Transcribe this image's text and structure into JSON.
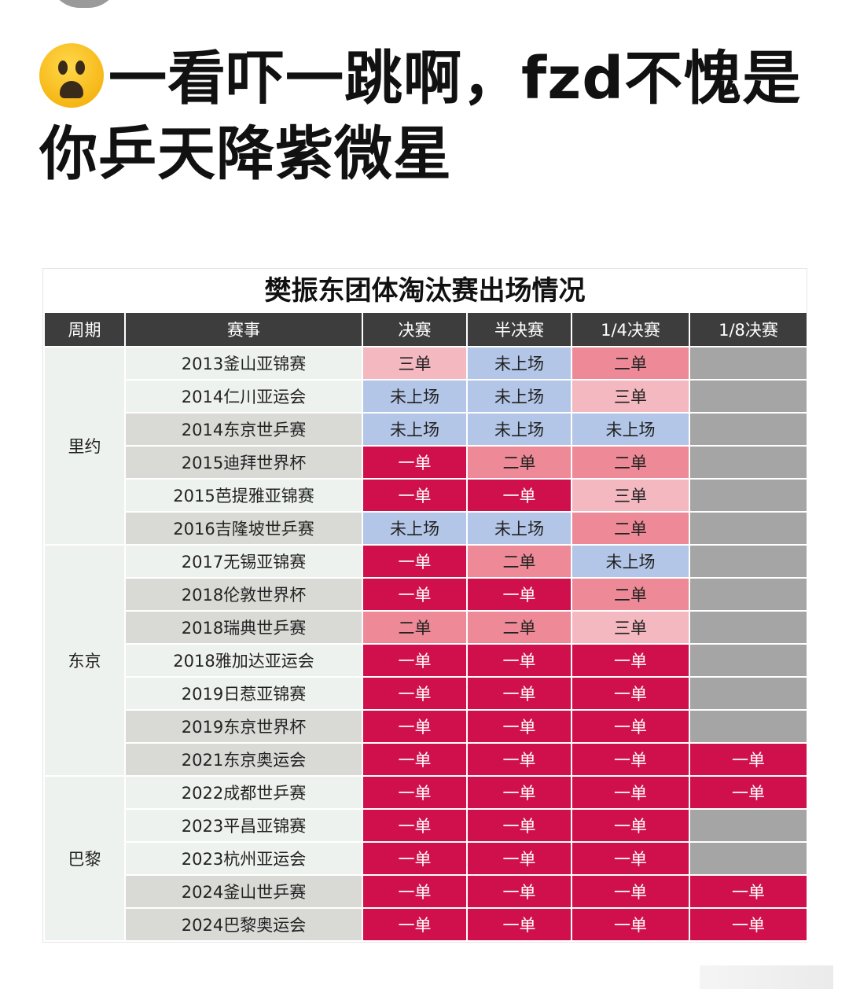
{
  "headline": {
    "emoji": "anguished-face",
    "text": "一看吓一跳啊，fzd不愧是你乒天降紫微星"
  },
  "table": {
    "title": "樊振东团体淘汰赛出场情况",
    "headers": [
      "周期",
      "赛事",
      "决赛",
      "半决赛",
      "1/4决赛",
      "1/8决赛"
    ],
    "periods": [
      {
        "label": "里约",
        "rows": 6
      },
      {
        "label": "东京",
        "rows": 7
      },
      {
        "label": "巴黎",
        "rows": 5
      }
    ],
    "legend_colors": {
      "一单": "#d0104c",
      "二单": "#ee8a97",
      "三单": "#f4b8c1",
      "未上场": "#b4c6e7",
      "无": "#a5a5a5"
    },
    "rows": [
      {
        "event": "2013釜山亚锦赛",
        "shade": "l",
        "cells": [
          "三单",
          "未上场",
          "二单",
          ""
        ]
      },
      {
        "event": "2014仁川亚运会",
        "shade": "l",
        "cells": [
          "未上场",
          "未上场",
          "三单",
          ""
        ]
      },
      {
        "event": "2014东京世乒赛",
        "shade": "d",
        "cells": [
          "未上场",
          "未上场",
          "未上场",
          ""
        ]
      },
      {
        "event": "2015迪拜世界杯",
        "shade": "d",
        "cells": [
          "一单",
          "二单",
          "二单",
          ""
        ]
      },
      {
        "event": "2015芭提雅亚锦赛",
        "shade": "l",
        "cells": [
          "一单",
          "一单",
          "三单",
          ""
        ]
      },
      {
        "event": "2016吉隆坡世乒赛",
        "shade": "d",
        "cells": [
          "未上场",
          "未上场",
          "二单",
          ""
        ]
      },
      {
        "event": "2017无锡亚锦赛",
        "shade": "l",
        "cells": [
          "一单",
          "二单",
          "未上场",
          ""
        ]
      },
      {
        "event": "2018伦敦世界杯",
        "shade": "d",
        "cells": [
          "一单",
          "一单",
          "二单",
          ""
        ]
      },
      {
        "event": "2018瑞典世乒赛",
        "shade": "d",
        "cells": [
          "二单",
          "二单",
          "三单",
          ""
        ]
      },
      {
        "event": "2018雅加达亚运会",
        "shade": "l",
        "cells": [
          "一单",
          "一单",
          "一单",
          ""
        ]
      },
      {
        "event": "2019日惹亚锦赛",
        "shade": "l",
        "cells": [
          "一单",
          "一单",
          "一单",
          ""
        ]
      },
      {
        "event": "2019东京世界杯",
        "shade": "d",
        "cells": [
          "一单",
          "一单",
          "一单",
          ""
        ]
      },
      {
        "event": "2021东京奥运会",
        "shade": "d",
        "cells": [
          "一单",
          "一单",
          "一单",
          "一单"
        ]
      },
      {
        "event": "2022成都世乒赛",
        "shade": "l",
        "cells": [
          "一单",
          "一单",
          "一单",
          "一单"
        ]
      },
      {
        "event": "2023平昌亚锦赛",
        "shade": "l",
        "cells": [
          "一单",
          "一单",
          "一单",
          ""
        ]
      },
      {
        "event": "2023杭州亚运会",
        "shade": "l",
        "cells": [
          "一单",
          "一单",
          "一单",
          ""
        ]
      },
      {
        "event": "2024釜山世乒赛",
        "shade": "d",
        "cells": [
          "一单",
          "一单",
          "一单",
          "一单"
        ]
      },
      {
        "event": "2024巴黎奥运会",
        "shade": "d",
        "cells": [
          "一单",
          "一单",
          "一单",
          "一单"
        ]
      }
    ]
  }
}
